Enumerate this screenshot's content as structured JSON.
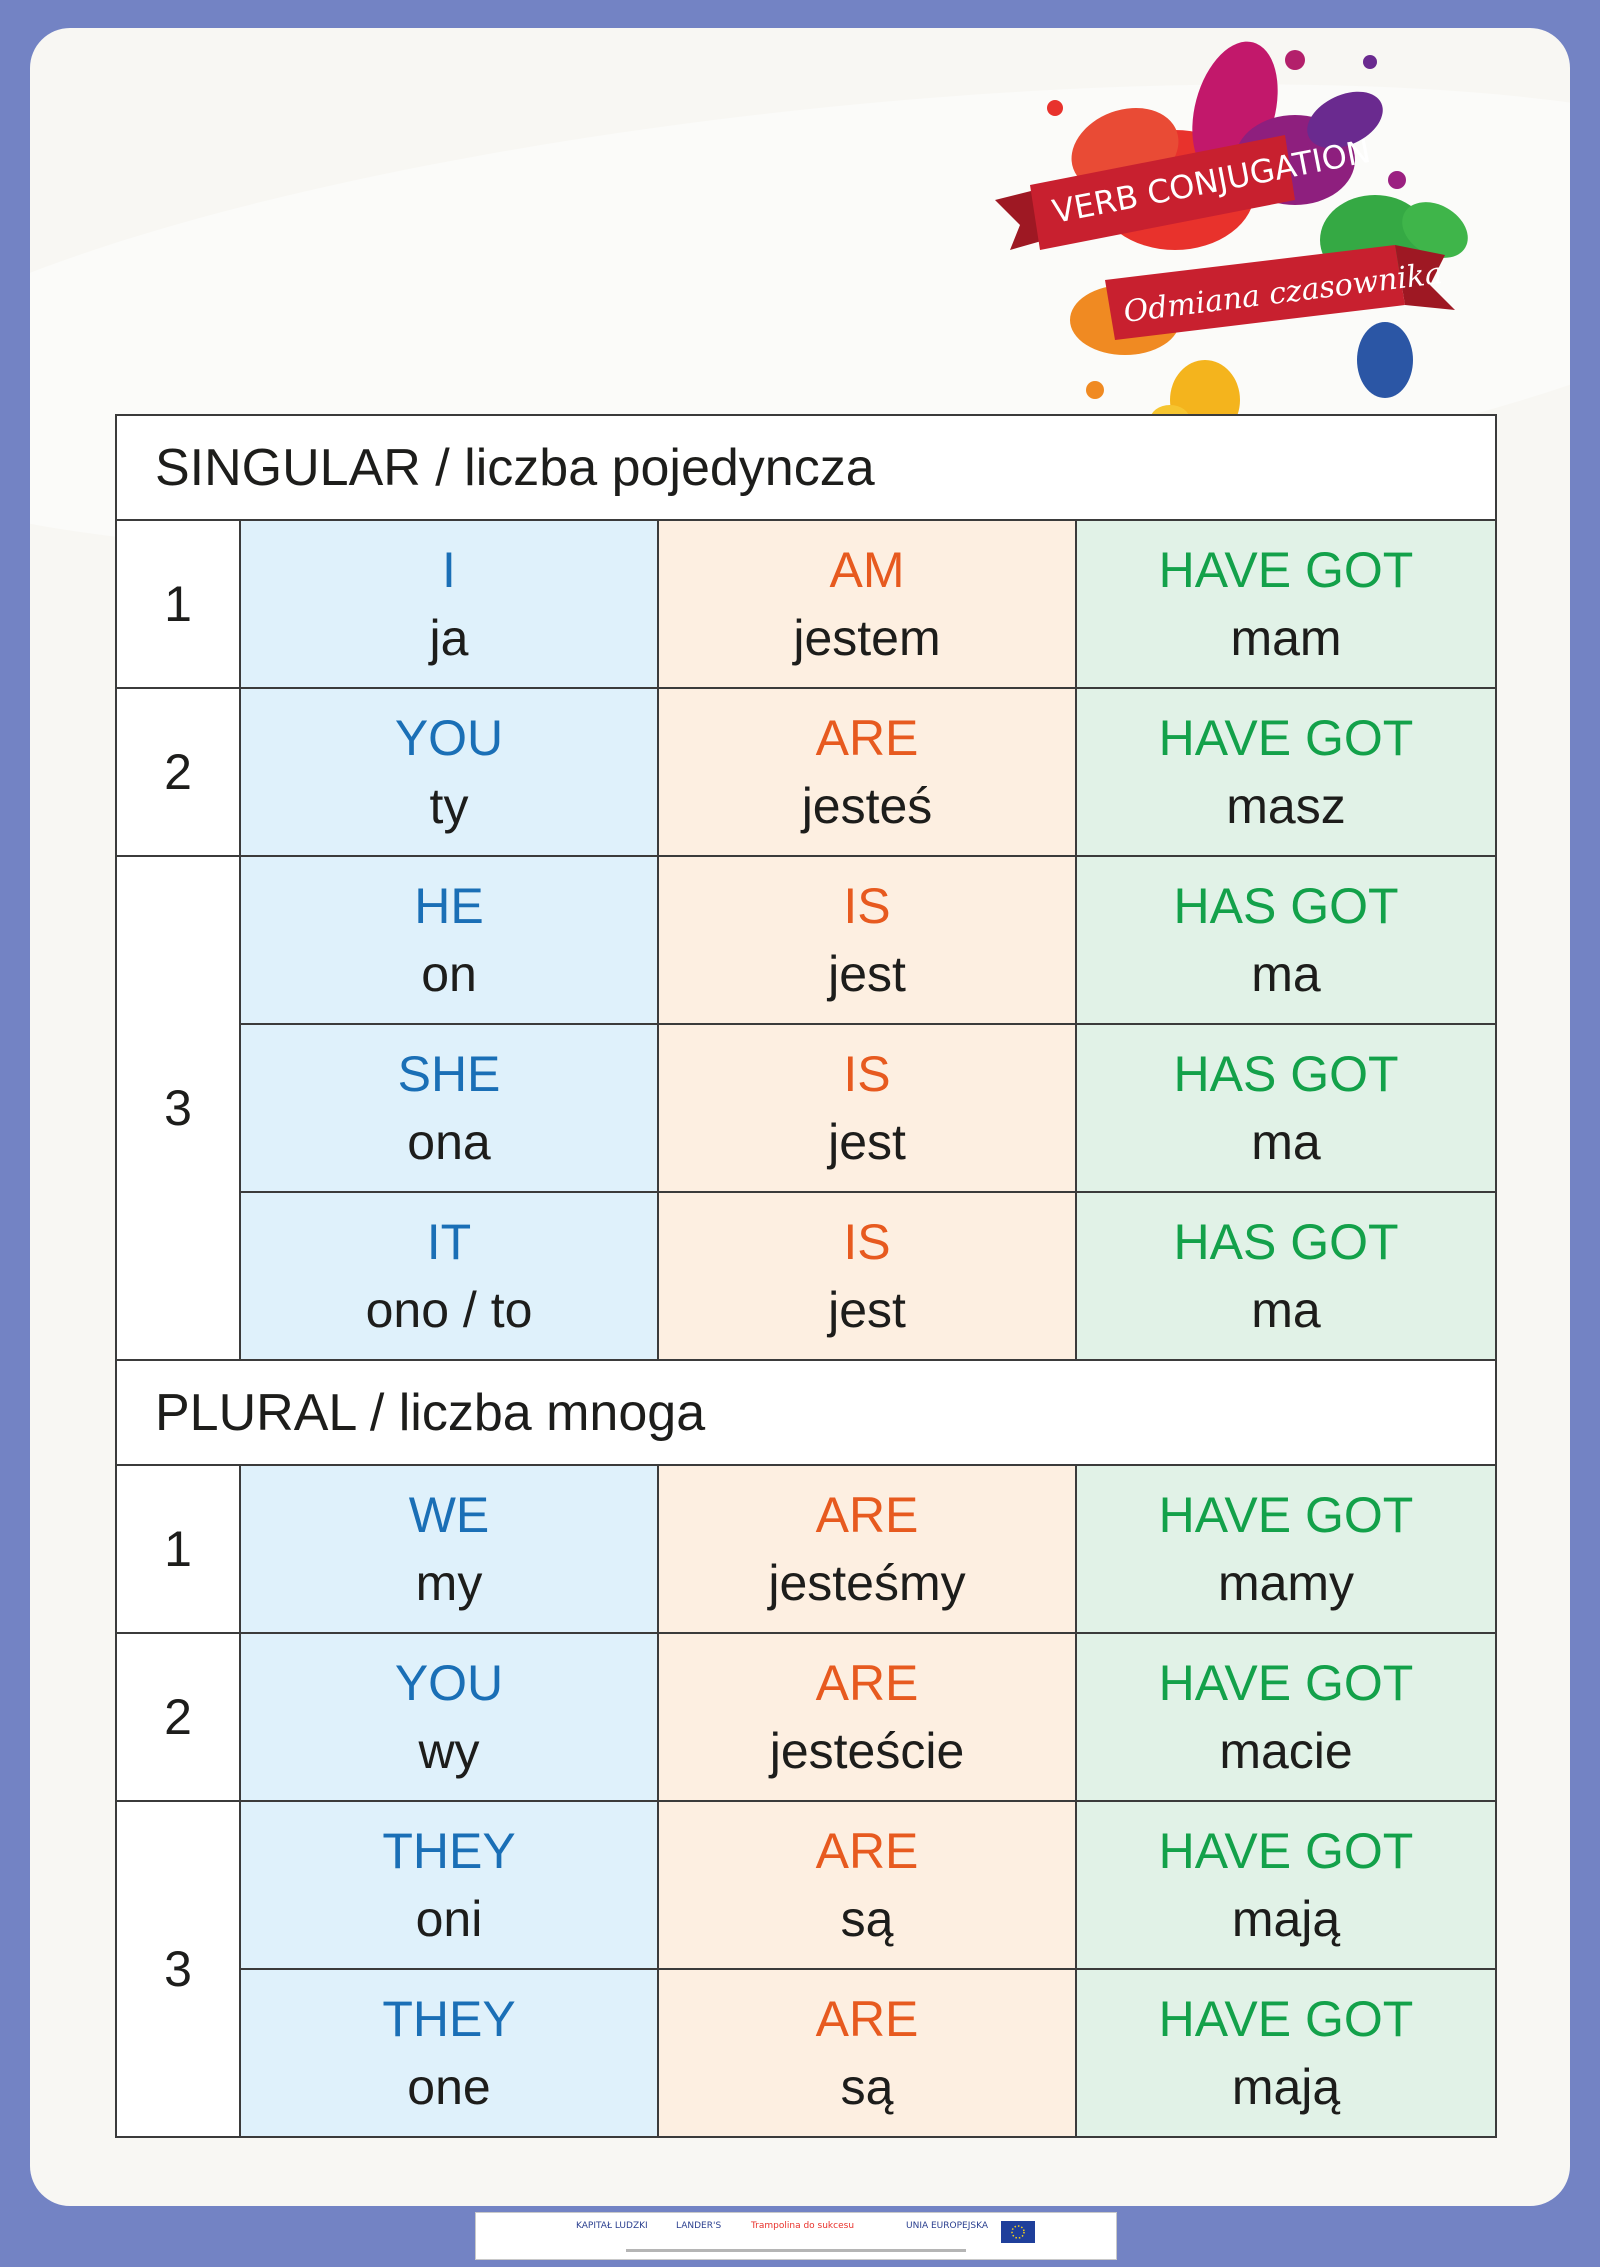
{
  "badge": {
    "line1": "VERB CONJUGATION",
    "line2": "Odmiana czasownika"
  },
  "singular": {
    "header": "SINGULAR / liczba pojedyncza",
    "rows": [
      {
        "pron_en": "I",
        "pron_pl": "ja",
        "be_en": "AM",
        "be_pl": "jestem",
        "have_en": "HAVE GOT",
        "have_pl": "mam"
      },
      {
        "pron_en": "YOU",
        "pron_pl": "ty",
        "be_en": "ARE",
        "be_pl": "jesteś",
        "have_en": "HAVE GOT",
        "have_pl": "masz"
      },
      {
        "pron_en": "HE",
        "pron_pl": "on",
        "be_en": "IS",
        "be_pl": "jest",
        "have_en": "HAS GOT",
        "have_pl": "ma"
      },
      {
        "pron_en": "SHE",
        "pron_pl": "ona",
        "be_en": "IS",
        "be_pl": "jest",
        "have_en": "HAS GOT",
        "have_pl": "ma"
      },
      {
        "pron_en": "IT",
        "pron_pl": "ono / to",
        "be_en": "IS",
        "be_pl": "jest",
        "have_en": "HAS GOT",
        "have_pl": "ma"
      }
    ],
    "numbers": [
      "1",
      "2",
      "3"
    ]
  },
  "plural": {
    "header": "PLURAL / liczba mnoga",
    "rows": [
      {
        "pron_en": "WE",
        "pron_pl": "my",
        "be_en": "ARE",
        "be_pl": "jesteśmy",
        "have_en": "HAVE GOT",
        "have_pl": "mamy"
      },
      {
        "pron_en": "YOU",
        "pron_pl": "wy",
        "be_en": "ARE",
        "be_pl": "jesteście",
        "have_en": "HAVE GOT",
        "have_pl": "macie"
      },
      {
        "pron_en": "THEY",
        "pron_pl": "oni",
        "be_en": "ARE",
        "be_pl": "są",
        "have_en": "HAVE GOT",
        "have_pl": "mają"
      },
      {
        "pron_en": "THEY",
        "pron_pl": "one",
        "be_en": "ARE",
        "be_pl": "są",
        "have_en": "HAVE GOT",
        "have_pl": "mają"
      }
    ],
    "numbers": [
      "1",
      "2",
      "3"
    ]
  },
  "footer": {
    "logos": [
      "KAPITAŁ LUDZKI",
      "LANDER'S",
      "Trampolina do sukcesu",
      "UNIA EUROPEJSKA"
    ]
  },
  "colors": {
    "pronoun": "#1a6fb6",
    "be": "#e75a1f",
    "have": "#13a14a",
    "pronoun_bg": "#dff1fb",
    "be_bg": "#fdefe1",
    "have_bg": "#e1f2e7",
    "frame": "#7383c4",
    "ribbon": "#c8202f"
  }
}
